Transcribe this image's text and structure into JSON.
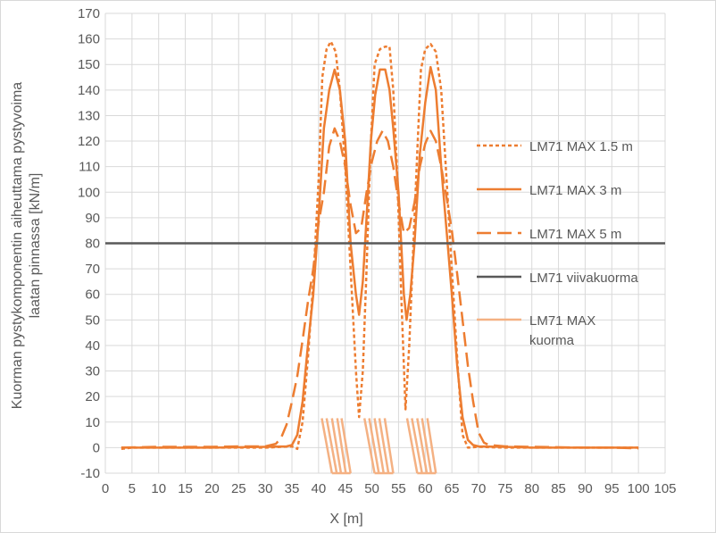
{
  "chart_data": {
    "type": "line",
    "xlabel": "X [m]",
    "ylabel_line1": "Kuorman pystykomponentin aiheuttama pystyvoima",
    "ylabel_line2": "laatan pinnassa  [kN/m]",
    "xlim": [
      0,
      105
    ],
    "ylim": [
      -10,
      170
    ],
    "xticks": [
      0,
      5,
      10,
      15,
      20,
      25,
      30,
      35,
      40,
      45,
      50,
      55,
      60,
      65,
      70,
      75,
      80,
      85,
      90,
      95,
      100,
      105
    ],
    "yticks": [
      -10,
      0,
      10,
      20,
      30,
      40,
      50,
      60,
      70,
      80,
      90,
      100,
      110,
      120,
      130,
      140,
      150,
      160,
      170
    ],
    "grid": true,
    "legend_position": "right",
    "series": [
      {
        "name": "LM71 MAX 1.5 m",
        "color": "#ED7D31",
        "dash": "short-dash",
        "points": [
          [
            3,
            -0.5
          ],
          [
            5,
            0
          ],
          [
            10,
            0
          ],
          [
            15,
            0
          ],
          [
            20,
            0
          ],
          [
            25,
            0
          ],
          [
            30,
            0
          ],
          [
            33,
            0.3
          ],
          [
            35,
            0.5
          ],
          [
            36,
            -0.5
          ],
          [
            37,
            10
          ],
          [
            38,
            35
          ],
          [
            39,
            65
          ],
          [
            40,
            105
          ],
          [
            40.7,
            145
          ],
          [
            41.5,
            156
          ],
          [
            42.3,
            159
          ],
          [
            43.2,
            155
          ],
          [
            44,
            140
          ],
          [
            45,
            110
          ],
          [
            46,
            70
          ],
          [
            47,
            30
          ],
          [
            47.6,
            12
          ],
          [
            48.3,
            30
          ],
          [
            49,
            70
          ],
          [
            49.7,
            115
          ],
          [
            50.5,
            150
          ],
          [
            51.5,
            156
          ],
          [
            52.5,
            157
          ],
          [
            53.3,
            157
          ],
          [
            54,
            140
          ],
          [
            54.7,
            110
          ],
          [
            55.5,
            60
          ],
          [
            56.3,
            15
          ],
          [
            57,
            40
          ],
          [
            57.8,
            80
          ],
          [
            58.5,
            115
          ],
          [
            59.2,
            148
          ],
          [
            60,
            156
          ],
          [
            61,
            158
          ],
          [
            62,
            155
          ],
          [
            63,
            140
          ],
          [
            64,
            105
          ],
          [
            65,
            70
          ],
          [
            66,
            35
          ],
          [
            67,
            5
          ],
          [
            68,
            0
          ],
          [
            70,
            0.3
          ],
          [
            75,
            0
          ],
          [
            80,
            0
          ],
          [
            85,
            0
          ],
          [
            90,
            0
          ],
          [
            95,
            0
          ],
          [
            100,
            0
          ]
        ]
      },
      {
        "name": "LM71 MAX 3 m",
        "color": "#ED7D31",
        "dash": "solid",
        "points": [
          [
            3,
            0
          ],
          [
            10,
            0
          ],
          [
            20,
            0
          ],
          [
            30,
            0.3
          ],
          [
            34,
            0.5
          ],
          [
            35,
            1
          ],
          [
            36,
            5
          ],
          [
            37,
            18
          ],
          [
            38,
            40
          ],
          [
            39,
            60
          ],
          [
            40,
            90
          ],
          [
            41,
            125
          ],
          [
            42,
            140
          ],
          [
            43,
            148
          ],
          [
            44,
            140
          ],
          [
            45,
            120
          ],
          [
            46,
            80
          ],
          [
            47,
            60
          ],
          [
            47.6,
            52
          ],
          [
            48.3,
            65
          ],
          [
            49,
            90
          ],
          [
            49.8,
            120
          ],
          [
            50.6,
            138
          ],
          [
            51.5,
            148
          ],
          [
            52.5,
            148
          ],
          [
            53.3,
            140
          ],
          [
            54,
            125
          ],
          [
            55,
            100
          ],
          [
            56,
            60
          ],
          [
            56.5,
            50
          ],
          [
            57.2,
            60
          ],
          [
            58,
            80
          ],
          [
            59,
            115
          ],
          [
            60,
            135
          ],
          [
            61,
            149
          ],
          [
            62,
            140
          ],
          [
            63,
            110
          ],
          [
            64,
            85
          ],
          [
            65,
            60
          ],
          [
            66,
            32
          ],
          [
            67,
            12
          ],
          [
            68,
            3
          ],
          [
            69,
            1
          ],
          [
            70,
            0.5
          ],
          [
            75,
            0.3
          ],
          [
            80,
            0
          ],
          [
            90,
            0
          ],
          [
            100,
            0
          ]
        ]
      },
      {
        "name": "LM71 MAX 5 m",
        "color": "#ED7D31",
        "dash": "long-dash",
        "points": [
          [
            3,
            0
          ],
          [
            10,
            0.3
          ],
          [
            20,
            0.3
          ],
          [
            25,
            0.5
          ],
          [
            30,
            0.5
          ],
          [
            32,
            1.5
          ],
          [
            33,
            4
          ],
          [
            34,
            9
          ],
          [
            35,
            18
          ],
          [
            36,
            28
          ],
          [
            37,
            42
          ],
          [
            38,
            57
          ],
          [
            39,
            70
          ],
          [
            40,
            88
          ],
          [
            41,
            100
          ],
          [
            42,
            118
          ],
          [
            43,
            125
          ],
          [
            44,
            120
          ],
          [
            45,
            110
          ],
          [
            46,
            95
          ],
          [
            47,
            84
          ],
          [
            48,
            86
          ],
          [
            49,
            100
          ],
          [
            50,
            112
          ],
          [
            51,
            120
          ],
          [
            52,
            124
          ],
          [
            53,
            120
          ],
          [
            54,
            110
          ],
          [
            55,
            96
          ],
          [
            56,
            84
          ],
          [
            57,
            86
          ],
          [
            58,
            96
          ],
          [
            59,
            110
          ],
          [
            60,
            119
          ],
          [
            61,
            124
          ],
          [
            62,
            120
          ],
          [
            63,
            110
          ],
          [
            64,
            98
          ],
          [
            65,
            85
          ],
          [
            66,
            68
          ],
          [
            67,
            50
          ],
          [
            68,
            32
          ],
          [
            69,
            18
          ],
          [
            70,
            6
          ],
          [
            71,
            2
          ],
          [
            72,
            1
          ],
          [
            75,
            0.5
          ],
          [
            80,
            0.3
          ],
          [
            90,
            0
          ],
          [
            95,
            0
          ],
          [
            100,
            -0.3
          ]
        ]
      },
      {
        "name": "LM71 viivakuorma",
        "color": "#595959",
        "dash": "solid",
        "points": [
          [
            0,
            80
          ],
          [
            105,
            80
          ]
        ]
      }
    ],
    "load_series": {
      "name": "LM71 MAX kuorma",
      "color": "#F4B183",
      "top": 11.5,
      "bottom": -10,
      "segments": [
        [
          40.6,
          42.5
        ],
        [
          41.5,
          43.4
        ],
        [
          42.5,
          44.2
        ],
        [
          43.5,
          45.1
        ],
        [
          44.3,
          46.0
        ],
        [
          48.6,
          50.5
        ],
        [
          49.5,
          51.3
        ],
        [
          50.5,
          52.2
        ],
        [
          51.4,
          53.1
        ],
        [
          52.4,
          54.0
        ],
        [
          56.6,
          58.5
        ],
        [
          57.5,
          59.4
        ],
        [
          58.5,
          60.3
        ],
        [
          59.4,
          61.1
        ],
        [
          60.4,
          62.0
        ]
      ]
    }
  }
}
